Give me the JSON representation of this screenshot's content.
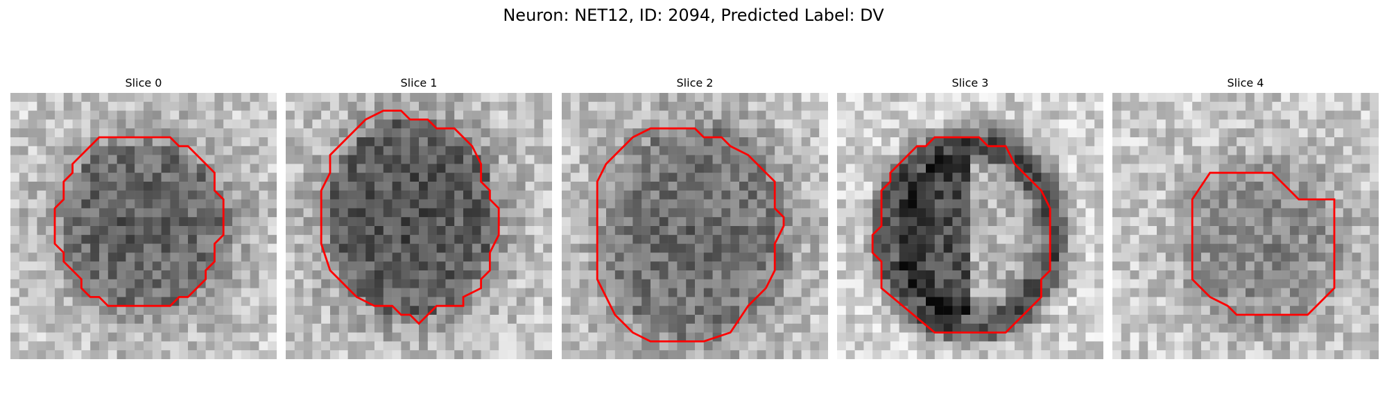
{
  "figure": {
    "suptitle": "Neuron: NET12, ID: 2094, Predicted Label: DV"
  },
  "colors": {
    "contour": "#ff0000",
    "background": "#ffffff",
    "image_colormap": "grayscale"
  },
  "slices": [
    {
      "title": "Slice 0"
    },
    {
      "title": "Slice 1"
    },
    {
      "title": "Slice 2"
    },
    {
      "title": "Slice 3"
    },
    {
      "title": "Slice 4"
    }
  ]
}
